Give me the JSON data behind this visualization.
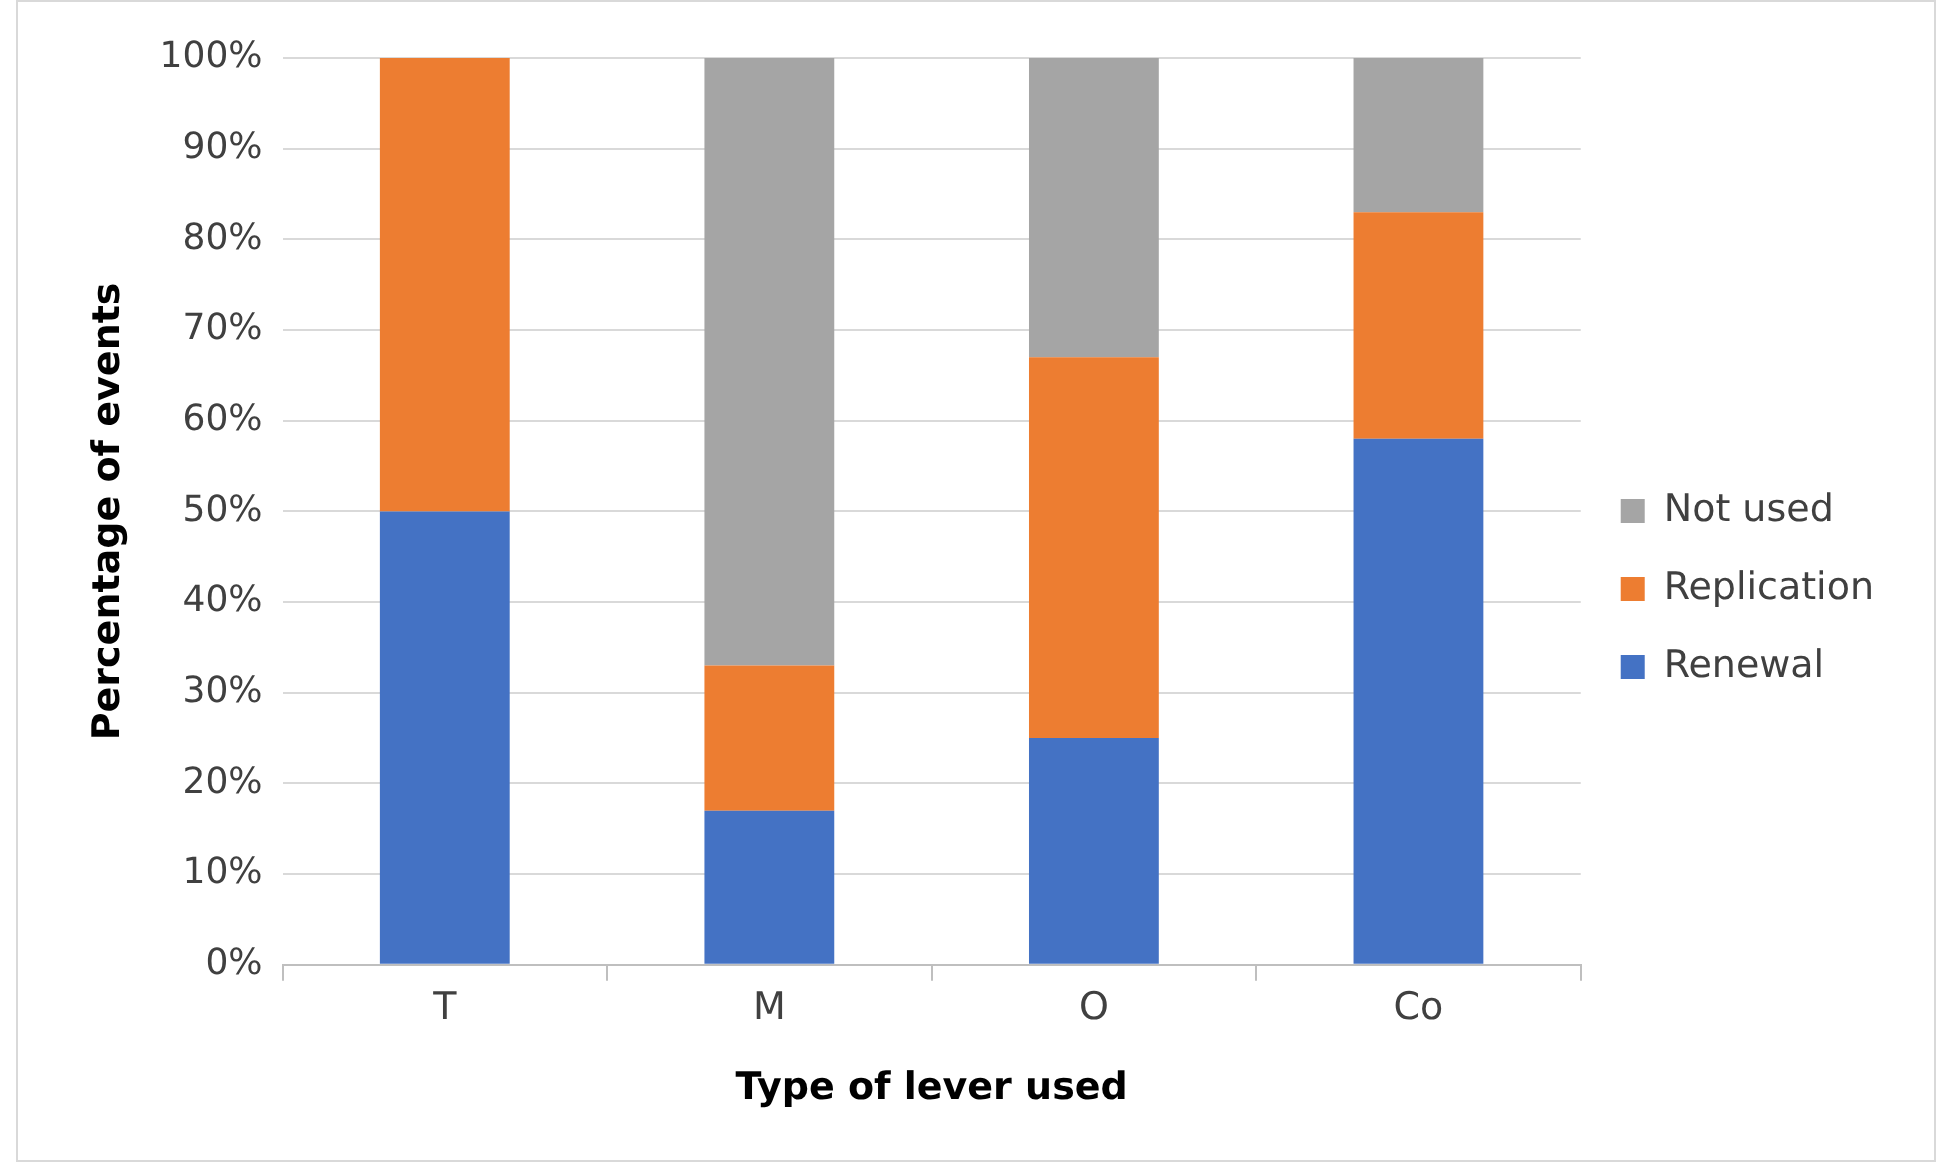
{
  "chart_data": {
    "type": "bar",
    "stacked": true,
    "xlabel": "Type of lever used",
    "ylabel": "Percentage of events",
    "categories": [
      "T",
      "M",
      "O",
      "Co"
    ],
    "series": [
      {
        "name": "Renewal",
        "color": "#4472c4",
        "values": [
          50,
          17,
          25,
          58
        ]
      },
      {
        "name": "Replication",
        "color": "#ed7d31",
        "values": [
          50,
          16,
          42,
          25
        ]
      },
      {
        "name": "Not used",
        "color": "#a5a5a5",
        "values": [
          0,
          67,
          33,
          17
        ]
      }
    ],
    "ylim": [
      0,
      100
    ],
    "yticks": [
      {
        "value": 0,
        "label": "0%"
      },
      {
        "value": 10,
        "label": "10%"
      },
      {
        "value": 20,
        "label": "20%"
      },
      {
        "value": 30,
        "label": "30%"
      },
      {
        "value": 40,
        "label": "40%"
      },
      {
        "value": 50,
        "label": "50%"
      },
      {
        "value": 60,
        "label": "60%"
      },
      {
        "value": 70,
        "label": "70%"
      },
      {
        "value": 80,
        "label": "80%"
      },
      {
        "value": 90,
        "label": "90%"
      },
      {
        "value": 100,
        "label": "100%"
      }
    ],
    "grid": "y",
    "legend": "right"
  }
}
